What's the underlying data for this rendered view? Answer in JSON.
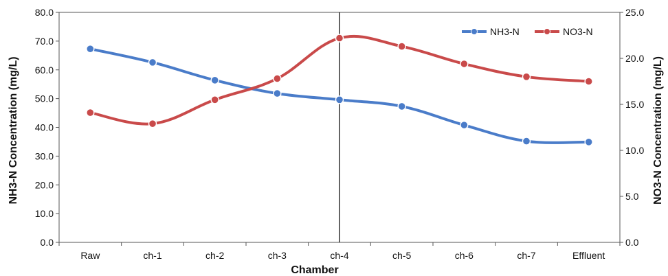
{
  "chart_data": {
    "type": "line",
    "xlabel": "Chamber",
    "ylabel_left": "NH3-N Concentration (mg/L)",
    "ylabel_right": "NO3-N Concentration (mg/L)",
    "categories": [
      "Raw",
      "ch-1",
      "ch-2",
      "ch-3",
      "ch-4",
      "ch-5",
      "ch-6",
      "ch-7",
      "Effluent"
    ],
    "ylim_left": [
      0,
      80
    ],
    "ylim_right": [
      0,
      25
    ],
    "left_ticks": [
      "0.0",
      "10.0",
      "20.0",
      "30.0",
      "40.0",
      "50.0",
      "60.0",
      "70.0",
      "80.0"
    ],
    "right_ticks": [
      "0.0",
      "5.0",
      "10.0",
      "15.0",
      "20.0",
      "25.0"
    ],
    "vertical_marker_at": "ch-4",
    "legend_position": "top-right",
    "grid": false,
    "series": [
      {
        "name": "NH3-N",
        "axis": "left",
        "color": "#4a7cc9",
        "values": [
          67.3,
          62.6,
          56.4,
          51.8,
          49.6,
          47.3,
          40.8,
          35.2,
          34.9
        ]
      },
      {
        "name": "NO3-N",
        "axis": "right",
        "color": "#c94a4a",
        "values": [
          14.1,
          12.9,
          15.5,
          17.8,
          22.2,
          21.3,
          19.4,
          18.0,
          17.5
        ]
      }
    ]
  }
}
